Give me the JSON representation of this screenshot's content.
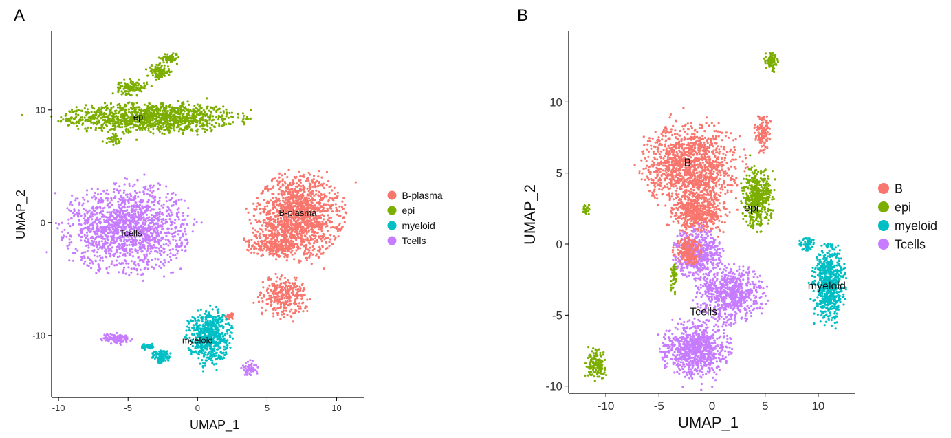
{
  "chart_data": [
    {
      "type": "scatter",
      "panel": "A",
      "xlabel": "UMAP_1",
      "ylabel": "UMAP_2",
      "xlim": [
        -10.5,
        12
      ],
      "ylim": [
        -15.5,
        17
      ],
      "xticks": [
        -10,
        -5,
        0,
        5,
        10
      ],
      "yticks": [
        -10,
        0,
        10
      ],
      "xtick_labels": [
        "-10",
        "-5",
        "0",
        "5",
        "10"
      ],
      "ytick_labels": [
        "-10",
        "0",
        "10"
      ],
      "legend_position": "right",
      "series": [
        {
          "name": "B-plasma",
          "color": "#F8766D"
        },
        {
          "name": "epi",
          "color": "#7CAE00"
        },
        {
          "name": "myeloid",
          "color": "#00BFC4"
        },
        {
          "name": "Tcells",
          "color": "#C77CFF"
        }
      ],
      "cluster_labels": [
        {
          "text": "epi",
          "x": -4.2,
          "y": 9.1
        },
        {
          "text": "B-plasma",
          "x": 7.2,
          "y": 0.6
        },
        {
          "text": "Tcells",
          "x": -4.8,
          "y": -1.2
        },
        {
          "text": "myeloid",
          "x": 0,
          "y": -10.7
        }
      ],
      "clusters": [
        {
          "series": "epi",
          "cx": -3.2,
          "cy": 9.3,
          "rx": 6.5,
          "ry": 1.4,
          "n": 1200
        },
        {
          "series": "epi",
          "cx": -4.7,
          "cy": 12.0,
          "rx": 1.2,
          "ry": 0.7,
          "n": 120
        },
        {
          "series": "epi",
          "cx": -2.8,
          "cy": 13.4,
          "rx": 0.9,
          "ry": 0.7,
          "n": 100
        },
        {
          "series": "epi",
          "cx": -2.0,
          "cy": 14.6,
          "rx": 0.7,
          "ry": 0.5,
          "n": 60
        },
        {
          "series": "epi",
          "cx": -6.0,
          "cy": 7.4,
          "rx": 0.5,
          "ry": 0.5,
          "n": 40
        },
        {
          "series": "B-plasma",
          "cx": 7.2,
          "cy": 0.6,
          "rx": 3.2,
          "ry": 3.8,
          "n": 1400
        },
        {
          "series": "B-plasma",
          "cx": 5.5,
          "cy": -2.0,
          "rx": 2.0,
          "ry": 1.0,
          "n": 220
        },
        {
          "series": "B-plasma",
          "cx": 6.2,
          "cy": -6.5,
          "rx": 1.8,
          "ry": 1.8,
          "n": 300
        },
        {
          "series": "Tcells",
          "cx": -5.0,
          "cy": -0.5,
          "rx": 4.5,
          "ry": 4.0,
          "n": 1500
        },
        {
          "series": "Tcells",
          "cx": -5.8,
          "cy": -10.3,
          "rx": 1.1,
          "ry": 0.5,
          "n": 110
        },
        {
          "series": "Tcells",
          "cx": 3.8,
          "cy": -12.9,
          "rx": 0.6,
          "ry": 0.7,
          "n": 60
        },
        {
          "series": "myeloid",
          "cx": 0.8,
          "cy": -10.0,
          "rx": 1.6,
          "ry": 2.5,
          "n": 600
        },
        {
          "series": "myeloid",
          "cx": -2.6,
          "cy": -11.9,
          "rx": 0.7,
          "ry": 0.6,
          "n": 100
        },
        {
          "series": "myeloid",
          "cx": -3.6,
          "cy": -11.0,
          "rx": 0.5,
          "ry": 0.3,
          "n": 40
        },
        {
          "series": "B-plasma",
          "cx": 2.3,
          "cy": -8.3,
          "rx": 0.3,
          "ry": 0.3,
          "n": 25
        }
      ]
    },
    {
      "type": "scatter",
      "panel": "B",
      "xlabel": "UMAP_1",
      "ylabel": "UMAP_2",
      "xlim": [
        -13.5,
        13.5
      ],
      "ylim": [
        -10.5,
        15
      ],
      "xticks": [
        -10,
        -5,
        0,
        5,
        10
      ],
      "yticks": [
        -10,
        -5,
        0,
        5,
        10
      ],
      "xtick_labels": [
        "-10",
        "-5",
        "0",
        "5",
        "10"
      ],
      "ytick_labels": [
        "-10",
        "-5",
        "0",
        "5",
        "10"
      ],
      "legend_position": "right",
      "series": [
        {
          "name": "B",
          "color": "#F8766D"
        },
        {
          "name": "epi",
          "color": "#7CAE00"
        },
        {
          "name": "myeloid",
          "color": "#00BFC4"
        },
        {
          "name": "Tcells",
          "color": "#C77CFF"
        }
      ],
      "cluster_labels": [
        {
          "text": "B",
          "x": -2.3,
          "y": 5.5
        },
        {
          "text": "epi",
          "x": 3.7,
          "y": 2.3
        },
        {
          "text": "myeloid",
          "x": 10.8,
          "y": -3.2
        },
        {
          "text": "Tcells",
          "x": -0.8,
          "y": -5.0
        }
      ],
      "clusters": [
        {
          "series": "B",
          "cx": -2.0,
          "cy": 5.5,
          "rx": 4.5,
          "ry": 3.0,
          "n": 1300
        },
        {
          "series": "B",
          "cx": -1.2,
          "cy": 2.2,
          "rx": 2.6,
          "ry": 1.5,
          "n": 500
        },
        {
          "series": "B",
          "cx": 4.8,
          "cy": 7.8,
          "rx": 0.8,
          "ry": 1.4,
          "n": 120
        },
        {
          "series": "epi",
          "cx": 4.2,
          "cy": 3.2,
          "rx": 1.5,
          "ry": 2.2,
          "n": 450
        },
        {
          "series": "epi",
          "cx": 5.6,
          "cy": 12.8,
          "rx": 0.6,
          "ry": 0.7,
          "n": 90
        },
        {
          "series": "epi",
          "cx": -10.8,
          "cy": -8.5,
          "rx": 1.1,
          "ry": 1.1,
          "n": 150
        },
        {
          "series": "epi",
          "cx": -11.8,
          "cy": 2.4,
          "rx": 0.4,
          "ry": 0.4,
          "n": 25
        },
        {
          "series": "epi",
          "cx": -3.6,
          "cy": -2.5,
          "rx": 0.3,
          "ry": 1.2,
          "n": 50
        },
        {
          "series": "Tcells",
          "cx": -1.3,
          "cy": -0.6,
          "rx": 2.3,
          "ry": 1.8,
          "n": 500
        },
        {
          "series": "Tcells",
          "cx": 1.8,
          "cy": -3.5,
          "rx": 3.2,
          "ry": 2.0,
          "n": 700
        },
        {
          "series": "Tcells",
          "cx": -1.5,
          "cy": -7.4,
          "rx": 3.2,
          "ry": 2.0,
          "n": 800
        },
        {
          "series": "B",
          "cx": -2.3,
          "cy": -0.5,
          "rx": 1.3,
          "ry": 1.0,
          "n": 200
        },
        {
          "series": "myeloid",
          "cx": 11.0,
          "cy": -2.8,
          "rx": 1.5,
          "ry": 2.8,
          "n": 650
        },
        {
          "series": "myeloid",
          "cx": 9.0,
          "cy": 0.0,
          "rx": 0.8,
          "ry": 0.5,
          "n": 60
        }
      ]
    }
  ],
  "panels": [
    {
      "letter": "A",
      "legend_labels": [
        "B-plasma",
        "epi",
        "myeloid",
        "Tcells"
      ]
    },
    {
      "letter": "B",
      "legend_labels": [
        "B",
        "epi",
        "myeloid",
        "Tcells"
      ]
    }
  ]
}
